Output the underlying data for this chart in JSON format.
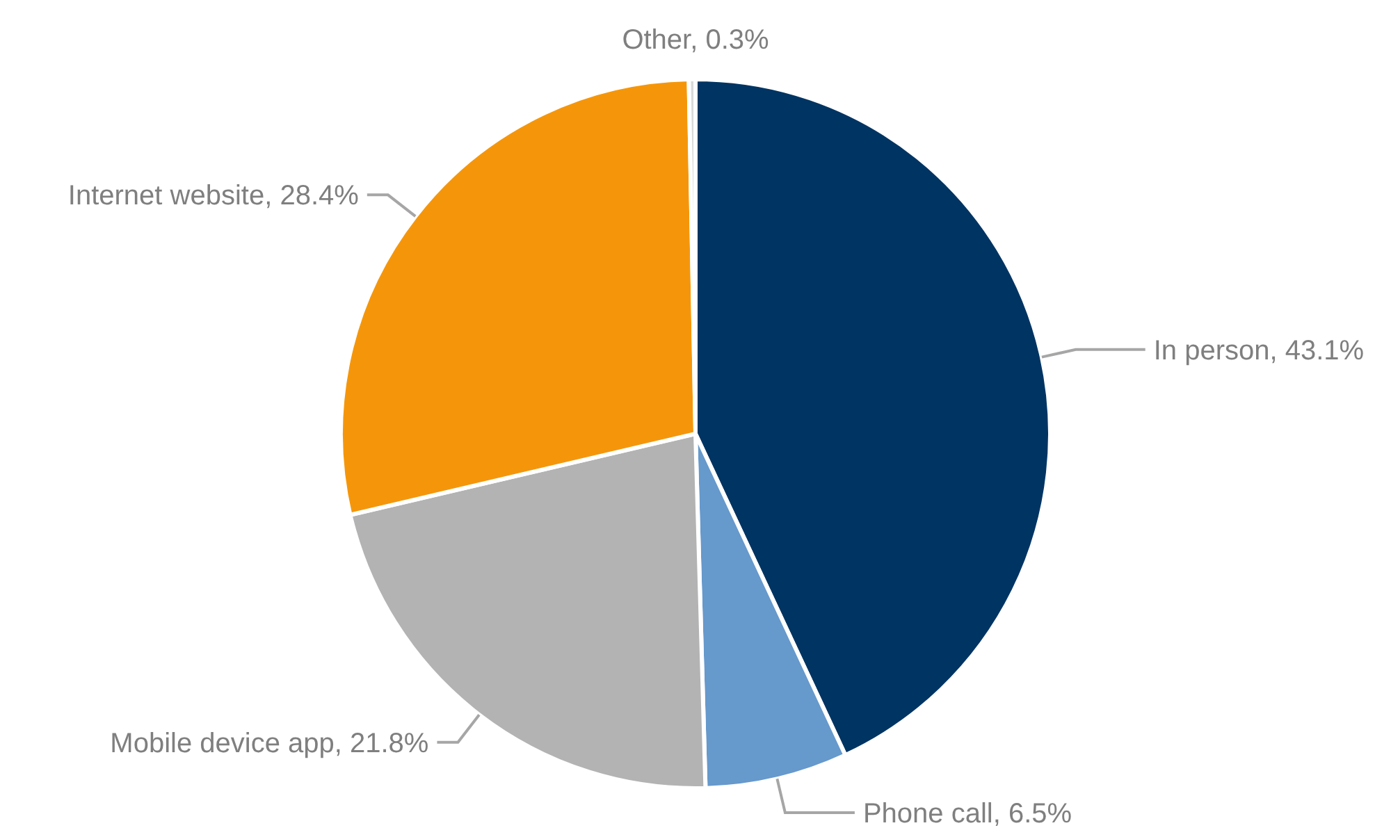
{
  "chart_data": {
    "type": "pie",
    "categories": [
      "In person",
      "Phone call",
      "Mobile device app",
      "Internet website",
      "Other"
    ],
    "values": [
      43.1,
      6.5,
      21.8,
      28.4,
      0.3
    ],
    "value_labels": [
      "43.1%",
      "6.5%",
      "21.8%",
      "28.4%",
      "0.3%"
    ],
    "colors": [
      "#003462",
      "#6699cc",
      "#b3b3b3",
      "#f5960a",
      "#d9d9d9"
    ],
    "legend": false
  }
}
